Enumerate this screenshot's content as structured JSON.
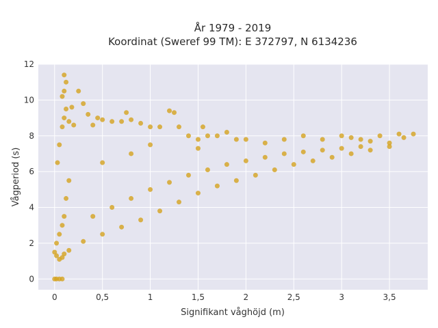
{
  "chart_data": {
    "type": "scatter",
    "title_line1": "År 1979 - 2019",
    "title_line2": "Koordinat (Sweref 99 TM): E 372797, N 6134236",
    "xlabel": "Signifikant våghöjd (m)",
    "ylabel": "Vågperiod (s)",
    "xlim": [
      -0.17,
      3.9
    ],
    "ylim": [
      -0.6,
      12.0
    ],
    "x_ticks": [
      0,
      0.5,
      1,
      1.5,
      2,
      2.5,
      3,
      3.5
    ],
    "x_tick_labels": [
      "0",
      "0,5",
      "1",
      "1,5",
      "2",
      "2,5",
      "3",
      "3,5"
    ],
    "y_ticks": [
      0,
      2,
      4,
      6,
      8,
      10,
      12
    ],
    "y_tick_labels": [
      "0",
      "2",
      "4",
      "6",
      "8",
      "10",
      "12"
    ],
    "grid": true,
    "background_color": "#e5e5f0",
    "marker_color": "#d4a21f",
    "series": [
      {
        "values": [
          [
            0.0,
            0.0
          ],
          [
            0.02,
            0.0
          ],
          [
            0.05,
            0.0
          ],
          [
            0.08,
            0.0
          ],
          [
            0.0,
            1.5
          ],
          [
            0.02,
            1.3
          ],
          [
            0.05,
            1.1
          ],
          [
            0.08,
            1.2
          ],
          [
            0.1,
            1.4
          ],
          [
            0.15,
            1.6
          ],
          [
            0.02,
            2.0
          ],
          [
            0.05,
            2.5
          ],
          [
            0.08,
            3.0
          ],
          [
            0.1,
            3.5
          ],
          [
            0.12,
            4.5
          ],
          [
            0.15,
            5.5
          ],
          [
            0.03,
            6.5
          ],
          [
            0.05,
            7.5
          ],
          [
            0.08,
            8.5
          ],
          [
            0.1,
            9.0
          ],
          [
            0.12,
            9.5
          ],
          [
            0.15,
            8.8
          ],
          [
            0.08,
            10.2
          ],
          [
            0.1,
            10.5
          ],
          [
            0.12,
            11.0
          ],
          [
            0.1,
            11.4
          ],
          [
            0.18,
            9.6
          ],
          [
            0.2,
            8.6
          ],
          [
            0.25,
            10.5
          ],
          [
            0.3,
            9.8
          ],
          [
            0.35,
            9.2
          ],
          [
            0.4,
            8.6
          ],
          [
            0.45,
            9.0
          ],
          [
            0.5,
            8.9
          ],
          [
            0.6,
            8.8
          ],
          [
            0.7,
            8.8
          ],
          [
            0.75,
            9.3
          ],
          [
            0.8,
            8.9
          ],
          [
            0.9,
            8.7
          ],
          [
            1.0,
            8.5
          ],
          [
            1.1,
            8.5
          ],
          [
            1.2,
            9.4
          ],
          [
            1.25,
            9.3
          ],
          [
            1.3,
            8.5
          ],
          [
            1.4,
            8.0
          ],
          [
            1.5,
            7.8
          ],
          [
            1.55,
            8.5
          ],
          [
            1.6,
            8.0
          ],
          [
            1.7,
            8.0
          ],
          [
            1.8,
            8.2
          ],
          [
            1.9,
            7.8
          ],
          [
            2.0,
            7.8
          ],
          [
            2.2,
            7.6
          ],
          [
            2.4,
            7.8
          ],
          [
            2.6,
            8.0
          ],
          [
            2.8,
            7.8
          ],
          [
            3.0,
            8.0
          ],
          [
            3.1,
            7.9
          ],
          [
            3.2,
            7.8
          ],
          [
            3.3,
            7.7
          ],
          [
            3.4,
            8.0
          ],
          [
            3.5,
            7.6
          ],
          [
            3.6,
            8.1
          ],
          [
            3.65,
            7.9
          ],
          [
            3.75,
            8.1
          ],
          [
            0.3,
            2.1
          ],
          [
            0.5,
            2.5
          ],
          [
            0.7,
            2.9
          ],
          [
            0.9,
            3.3
          ],
          [
            1.1,
            3.8
          ],
          [
            1.3,
            4.3
          ],
          [
            1.5,
            4.8
          ],
          [
            1.7,
            5.2
          ],
          [
            1.9,
            5.5
          ],
          [
            2.1,
            5.8
          ],
          [
            2.3,
            6.1
          ],
          [
            2.5,
            6.4
          ],
          [
            2.7,
            6.6
          ],
          [
            2.9,
            6.8
          ],
          [
            3.1,
            7.0
          ],
          [
            3.3,
            7.2
          ],
          [
            3.5,
            7.4
          ],
          [
            0.4,
            3.5
          ],
          [
            0.6,
            4.0
          ],
          [
            0.8,
            4.5
          ],
          [
            1.0,
            5.0
          ],
          [
            1.2,
            5.4
          ],
          [
            1.4,
            5.8
          ],
          [
            1.6,
            6.1
          ],
          [
            1.8,
            6.4
          ],
          [
            2.0,
            6.6
          ],
          [
            2.2,
            6.8
          ],
          [
            2.4,
            7.0
          ],
          [
            2.6,
            7.1
          ],
          [
            2.8,
            7.2
          ],
          [
            3.0,
            7.3
          ],
          [
            3.2,
            7.4
          ],
          [
            0.5,
            6.5
          ],
          [
            0.8,
            7.0
          ],
          [
            1.0,
            7.5
          ],
          [
            1.5,
            7.3
          ]
        ]
      }
    ]
  }
}
